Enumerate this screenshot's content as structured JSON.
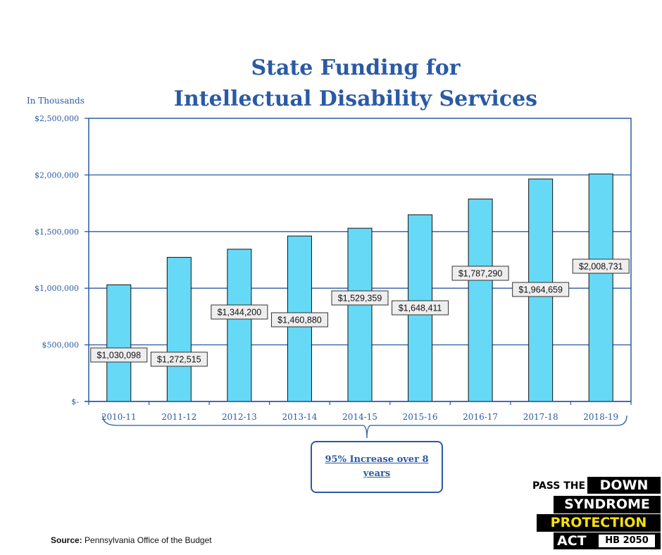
{
  "chart_data": {
    "type": "bar",
    "title_line1": "State Funding for",
    "title_line2": "Intellectual Disability Services",
    "unit_label": "In Thousands",
    "categories": [
      "2010-11",
      "2011-12",
      "2012-13",
      "2013-14",
      "2014-15",
      "2015-16",
      "2016-17",
      "2017-18",
      "2018-19"
    ],
    "values": [
      1030098,
      1272515,
      1344200,
      1460880,
      1529359,
      1648411,
      1787290,
      1964659,
      2008731
    ],
    "data_labels": [
      "$1,030,098",
      "$1,272,515",
      "$1,344,200",
      "$1,460,880",
      "$1,529,359",
      "$1,648,411",
      "$1,787,290",
      "$1,964,659",
      "$2,008,731"
    ],
    "y_ticks": [
      0,
      500000,
      1000000,
      1500000,
      2000000,
      2500000
    ],
    "y_tick_labels": [
      "$-",
      "$500,000",
      "$1,000,000",
      "$1,500,000",
      "$2,000,000",
      "$2,500,000"
    ],
    "ylim": [
      0,
      2500000
    ],
    "grid": true,
    "bar_color": "#66d9f7",
    "axis_color": "#2a5aa5",
    "annotation": "95% Increase over 8 years"
  },
  "source": {
    "label": "Source:",
    "text": " Pennsylvania Office of the Budget"
  },
  "logo": {
    "pass_the": "PASS THE",
    "down": "DOWN",
    "syndrome": "SYNDROME",
    "protection": "PROTECTION",
    "act": "ACT",
    "bill": "HB 2050"
  }
}
